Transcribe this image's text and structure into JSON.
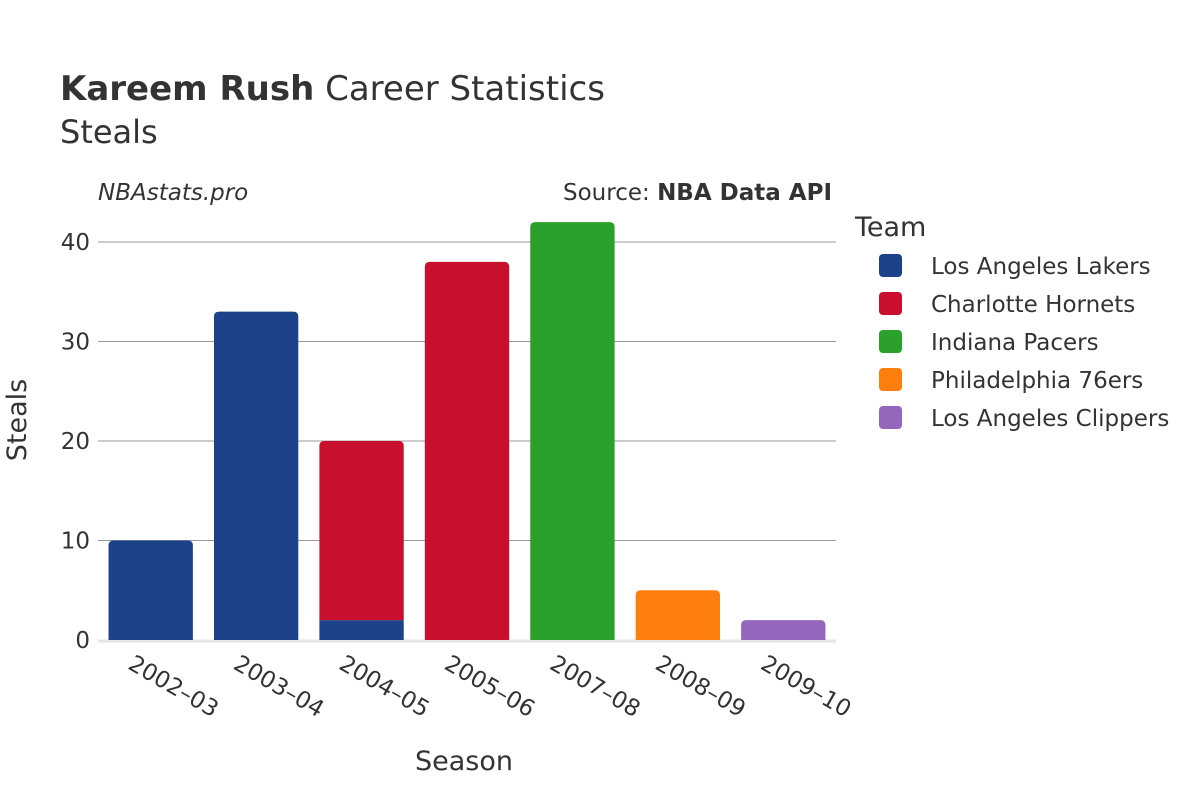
{
  "header": {
    "title_bold": "Kareem Rush",
    "title_rest": " Career Statistics",
    "subtitle": "Steals",
    "watermark": "NBAstats.pro",
    "source_prefix": "Source: ",
    "source_name": "NBA Data API"
  },
  "chart_data": {
    "type": "bar",
    "stacked": true,
    "xlabel": "Season",
    "ylabel": "Steals",
    "ylim": [
      0,
      44
    ],
    "yticks": [
      0,
      10,
      20,
      30,
      40
    ],
    "grid": true,
    "legend_title": "Team",
    "legend_position": "right",
    "categories": [
      "2002–03",
      "2003–04",
      "2004–05",
      "2005–06",
      "2007–08",
      "2008–09",
      "2009–10"
    ],
    "series": [
      {
        "name": "Los Angeles Lakers",
        "color": "#1d428a",
        "values": [
          10,
          33,
          2,
          0,
          0,
          0,
          0
        ]
      },
      {
        "name": "Charlotte Hornets",
        "color": "#c8102e",
        "values": [
          0,
          0,
          18,
          38,
          0,
          0,
          0
        ]
      },
      {
        "name": "Indiana Pacers",
        "color": "#2ca02c",
        "values": [
          0,
          0,
          0,
          0,
          42,
          0,
          0
        ]
      },
      {
        "name": "Philadelphia 76ers",
        "color": "#ff7f0e",
        "values": [
          0,
          0,
          0,
          0,
          0,
          5,
          0
        ]
      },
      {
        "name": "Los Angeles Clippers",
        "color": "#9467bd",
        "values": [
          0,
          0,
          0,
          0,
          0,
          0,
          2
        ]
      }
    ]
  }
}
